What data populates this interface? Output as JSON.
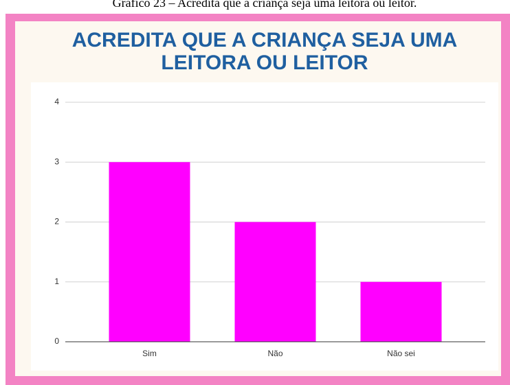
{
  "caption": "Gráfico 23 – Acredita que a criança seja uma leitora ou leitor.",
  "chart_data": {
    "type": "bar",
    "title": "ACREDITA QUE A CRIANÇA SEJA UMA LEITORA OU LEITOR",
    "categories": [
      "Sim",
      "Não",
      "Não sei"
    ],
    "values": [
      3,
      2,
      1
    ],
    "color": "#ff00ff",
    "ylim": [
      0,
      4
    ],
    "yticks": [
      0,
      1,
      2,
      3,
      4
    ],
    "grid": true
  }
}
